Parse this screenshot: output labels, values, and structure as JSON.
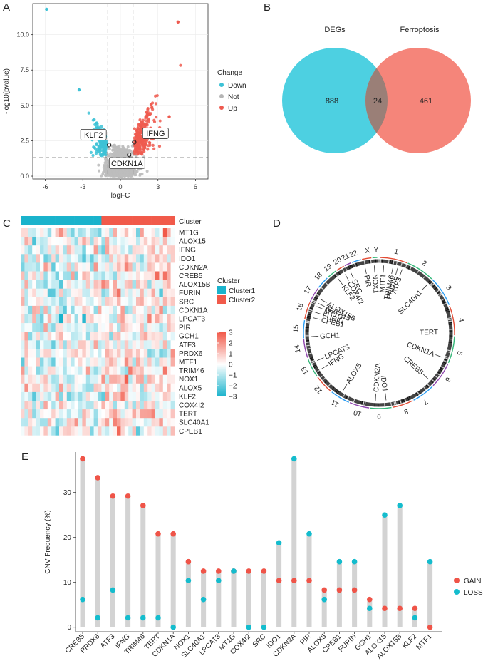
{
  "panel_labels": [
    "A",
    "B",
    "C",
    "D",
    "E"
  ],
  "chart_data": [
    {
      "panel": "A",
      "type": "scatter",
      "title": "",
      "xlabel": "logFC",
      "ylabel": "-log10(pvalue)",
      "xlim": [
        -7,
        7
      ],
      "ylim": [
        -0.2,
        12.2
      ],
      "xticks": [
        "-6",
        "-3",
        "0",
        "3",
        "6"
      ],
      "xtick_values": [
        -6,
        -3,
        0,
        3,
        6
      ],
      "yticks": [
        "0.0",
        "2.5",
        "5.0",
        "7.5",
        "10.0"
      ],
      "ytick_values": [
        0,
        2.5,
        5,
        7.5,
        10
      ],
      "vlines": [
        -1,
        1
      ],
      "hline": 1.3,
      "legend": {
        "title": "Change",
        "items": [
          "Down",
          "Not",
          "Up"
        ],
        "colors": [
          "#3dc2d6",
          "#b5b5b5",
          "#ee5a4f"
        ]
      },
      "highlighted_genes": [
        {
          "name": "KLF2",
          "x": -0.9,
          "y": 2.2
        },
        {
          "name": "IFNG",
          "x": 1.1,
          "y": 2.4
        },
        {
          "name": "CDKN1A",
          "x": 0.7,
          "y": 1.5
        }
      ],
      "outliers": [
        {
          "group": "Down",
          "x": -5.9,
          "y": 11.8
        },
        {
          "group": "Up",
          "x": 4.6,
          "y": 10.9
        },
        {
          "group": "Down",
          "x": -3.3,
          "y": 6.1
        },
        {
          "group": "Up",
          "x": 3.9,
          "y": 4.2
        }
      ]
    },
    {
      "panel": "B",
      "type": "venn",
      "sets": [
        "DEGs",
        "Ferroptosis"
      ],
      "only_left": "888",
      "intersection": "24",
      "only_right": "461",
      "colors": [
        "#4dd0e1",
        "#f5857a"
      ]
    },
    {
      "panel": "C",
      "type": "heatmap",
      "annotation_label": "Cluster",
      "clusters": [
        "Cluster1",
        "Cluster2"
      ],
      "cluster_colors": [
        "#1ab3cc",
        "#f15a4a"
      ],
      "rows": [
        "MT1G",
        "ALOX15",
        "IFNG",
        "IDO1",
        "CDKN2A",
        "CREB5",
        "ALOX15B",
        "FURIN",
        "SRC",
        "CDKN1A",
        "LPCAT3",
        "PIR",
        "GCH1",
        "ATF3",
        "PRDX6",
        "MTF1",
        "TRIM46",
        "NOX1",
        "ALOX5",
        "KLF2",
        "COX4I2",
        "TERT",
        "SLC40A1",
        "CPEB1"
      ],
      "n_columns": 40,
      "n_cluster1": 21,
      "color_scale": {
        "min": -3,
        "max": 3,
        "ticks": [
          "3",
          "2",
          "1",
          "0",
          "−1",
          "−2",
          "−3"
        ],
        "low": "#1ab3cc",
        "mid": "#ffffff",
        "high": "#f15a4a"
      }
    },
    {
      "panel": "D",
      "type": "circos",
      "chromosomes": [
        "1",
        "2",
        "3",
        "4",
        "5",
        "6",
        "7",
        "8",
        "9",
        "10",
        "11",
        "12",
        "13",
        "14",
        "15",
        "16",
        "17",
        "18",
        "19",
        "20",
        "21",
        "22",
        "X",
        "Y"
      ],
      "genes": [
        "MTF1",
        "TRIM46",
        "PRDX6",
        "ATF3",
        "SLC40A1",
        "TERT",
        "CDKN1A",
        "CREB5",
        "IDO1",
        "CDKN2A",
        "ALOX5",
        "IFNG",
        "LPCAT3",
        "GCH1",
        "CPEB1",
        "FURIN",
        "MT1G",
        "ALOX15",
        "ALOX15B",
        "KLF2",
        "COX4I2",
        "SRC",
        "PIR",
        "NOX1"
      ]
    },
    {
      "panel": "E",
      "type": "dot",
      "title": "",
      "xlabel": "",
      "ylabel": "CNV Frequency (%)",
      "ylim": [
        -1,
        39
      ],
      "yticks": [
        "0",
        "10",
        "20",
        "30"
      ],
      "ytick_values": [
        0,
        10,
        20,
        30
      ],
      "categories": [
        "CREB5",
        "PRDX6",
        "ATF3",
        "IFNG",
        "TRIM46",
        "TERT",
        "CDKN1A",
        "NOX1",
        "SLC40A1",
        "LPCAT3",
        "MT1G",
        "COX4I2",
        "SRC",
        "IDO1",
        "CDKN2A",
        "PIR",
        "ALOX5",
        "CPEB1",
        "FURIN",
        "GCH1",
        "ALOX15",
        "ALOX15B",
        "KLF2",
        "MTF1"
      ],
      "series": [
        {
          "name": "GAIN",
          "color": "#ef5448",
          "values": [
            37.5,
            33.3,
            29.2,
            29.2,
            27.1,
            20.8,
            20.8,
            14.6,
            12.5,
            12.5,
            12.5,
            12.5,
            12.5,
            10.4,
            10.4,
            10.4,
            8.3,
            8.3,
            8.3,
            6.2,
            4.2,
            4.2,
            4.2,
            0
          ]
        },
        {
          "name": "LOSS",
          "color": "#14bccd",
          "values": [
            6.2,
            2.1,
            8.3,
            2.1,
            2.1,
            2.1,
            0,
            10.4,
            6.2,
            10.4,
            12.5,
            0,
            0,
            18.8,
            37.5,
            20.8,
            6.2,
            14.6,
            14.6,
            4.2,
            25.0,
            27.1,
            2.1,
            14.6
          ]
        }
      ],
      "legend": [
        "GAIN",
        "LOSS"
      ]
    }
  ]
}
